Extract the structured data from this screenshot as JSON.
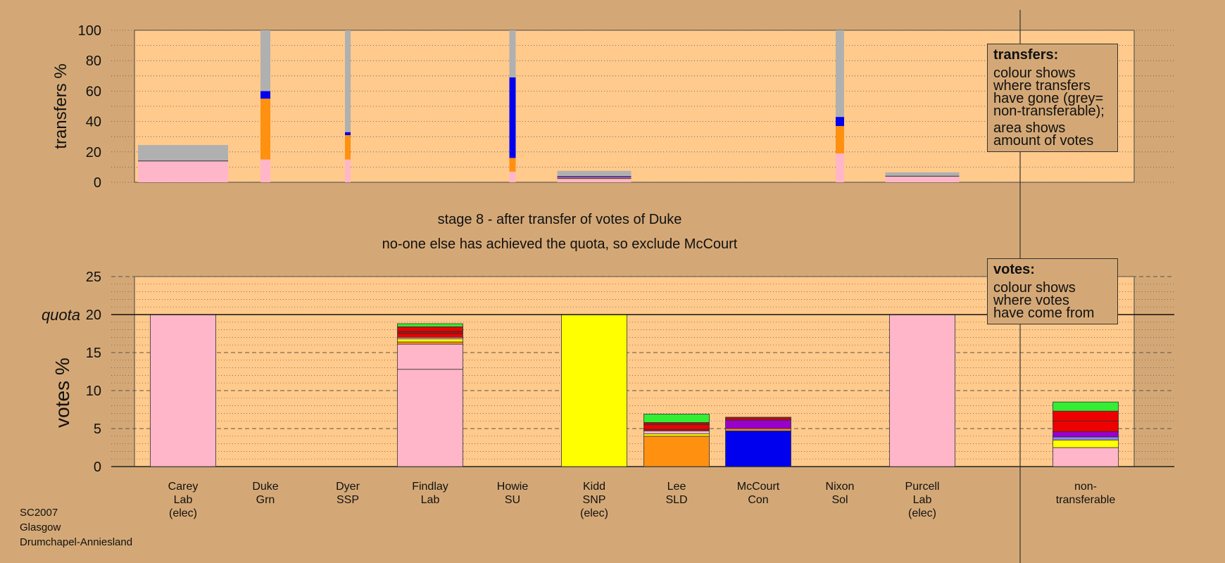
{
  "chart_data": [
    {
      "type": "bar",
      "stacked": true,
      "ylabel": "transfers %",
      "ylim": [
        0,
        100
      ],
      "yticks": [
        0,
        20,
        40,
        60,
        80,
        100
      ],
      "grid": true,
      "note": "bar width shows amount of votes transferred",
      "candidates": [
        "Carey",
        "Duke",
        "Dyer",
        "Findlay",
        "Howie",
        "Kidd",
        "Lee",
        "McCourt",
        "Nixon",
        "Purcell"
      ],
      "bars": [
        {
          "candidate": "Carey",
          "width_votes_pct": 12.8,
          "segments": [
            {
              "color": "#ffb6c8",
              "value": 14
            },
            {
              "color": "#b0b0b0",
              "value": 10.5
            }
          ]
        },
        {
          "candidate": "Duke",
          "width_votes_pct": 1.4,
          "segments": [
            {
              "color": "#ffb6c8",
              "value": 15
            },
            {
              "color": "#ff9010",
              "value": 40
            },
            {
              "color": "#0000ee",
              "value": 5
            },
            {
              "color": "#b0b0b0",
              "value": 40
            }
          ]
        },
        {
          "candidate": "Dyer",
          "width_votes_pct": 0.8,
          "segments": [
            {
              "color": "#ffb6c8",
              "value": 15
            },
            {
              "color": "#ff9010",
              "value": 16
            },
            {
              "color": "#0000ee",
              "value": 2
            },
            {
              "color": "#b0b0b0",
              "value": 67
            }
          ]
        },
        {
          "candidate": "Howie",
          "width_votes_pct": 0.9,
          "segments": [
            {
              "color": "#ffb6c8",
              "value": 7
            },
            {
              "color": "#ff9010",
              "value": 9
            },
            {
              "color": "#0000ee",
              "value": 53
            },
            {
              "color": "#b0b0b0",
              "value": 31
            }
          ]
        },
        {
          "candidate": "Kidd",
          "width_votes_pct": 10.5,
          "segments": [
            {
              "color": "#ffb6c8",
              "value": 2.5
            },
            {
              "color": "#ff9010",
              "value": 0.8
            },
            {
              "color": "#0000ee",
              "value": 0.7
            },
            {
              "color": "#b0b0b0",
              "value": 3.5
            }
          ]
        },
        {
          "candidate": "Nixon",
          "width_votes_pct": 1.2,
          "segments": [
            {
              "color": "#ffb6c8",
              "value": 19
            },
            {
              "color": "#ff9010",
              "value": 18
            },
            {
              "color": "#0000ee",
              "value": 6
            },
            {
              "color": "#b0b0b0",
              "value": 57
            }
          ]
        },
        {
          "candidate": "Purcell",
          "width_votes_pct": 10.5,
          "segments": [
            {
              "color": "#ffb6c8",
              "value": 4
            },
            {
              "color": "#b0b0b0",
              "value": 2.5
            }
          ]
        }
      ]
    },
    {
      "type": "bar",
      "stacked": true,
      "ylabel": "votes %",
      "ylim": [
        0,
        25
      ],
      "yticks": [
        0,
        5,
        10,
        15,
        20,
        25
      ],
      "quota": 20,
      "quota_label": "quota",
      "grid": true,
      "categories": [
        {
          "name": "Carey",
          "party": "Lab",
          "status": "(elec)"
        },
        {
          "name": "Duke",
          "party": "Grn",
          "status": ""
        },
        {
          "name": "Dyer",
          "party": "SSP",
          "status": ""
        },
        {
          "name": "Findlay",
          "party": "Lab",
          "status": ""
        },
        {
          "name": "Howie",
          "party": "SU",
          "status": ""
        },
        {
          "name": "Kidd",
          "party": "SNP",
          "status": "(elec)"
        },
        {
          "name": "Lee",
          "party": "SLD",
          "status": ""
        },
        {
          "name": "McCourt",
          "party": "Con",
          "status": ""
        },
        {
          "name": "Nixon",
          "party": "Sol",
          "status": ""
        },
        {
          "name": "Purcell",
          "party": "Lab",
          "status": "(elec)"
        },
        {
          "name": "non-",
          "party": "transferable",
          "status": ""
        }
      ],
      "stacks": [
        [
          {
            "color": "#ffb6c8",
            "value": 20
          }
        ],
        [],
        [],
        [
          {
            "color": "#ffb6c8",
            "value": 12.8
          },
          {
            "color": "#ffb6c8",
            "value": 3.3
          },
          {
            "color": "#ff9010",
            "value": 0.3
          },
          {
            "color": "#ffff00",
            "value": 0.4
          },
          {
            "color": "#ffb6c8",
            "value": 0.2
          },
          {
            "color": "#ee0000",
            "value": 0.5
          },
          {
            "color": "#aa1111",
            "value": 0.3
          },
          {
            "color": "#ee0000",
            "value": 0.6
          },
          {
            "color": "#33ee33",
            "value": 0.4
          }
        ],
        [],
        [
          {
            "color": "#ffff00",
            "value": 20
          }
        ],
        [
          {
            "color": "#ff9010",
            "value": 4.0
          },
          {
            "color": "#ffff00",
            "value": 0.3
          },
          {
            "color": "#ffb6c8",
            "value": 0.4
          },
          {
            "color": "#aa1111",
            "value": 0.2
          },
          {
            "color": "#ee0000",
            "value": 0.6
          },
          {
            "color": "#aa1111",
            "value": 0.3
          },
          {
            "color": "#33ee33",
            "value": 1.1
          }
        ],
        [
          {
            "color": "#0000ee",
            "value": 4.7
          },
          {
            "color": "#ff9010",
            "value": 0.3
          },
          {
            "color": "#9900cc",
            "value": 1.1
          },
          {
            "color": "#aa1111",
            "value": 0.4
          }
        ],
        [],
        [
          {
            "color": "#ffb6c8",
            "value": 20
          }
        ],
        [
          {
            "color": "#ffb6c8",
            "value": 2.5
          },
          {
            "color": "#ffff00",
            "value": 1.0
          },
          {
            "color": "#8888ff",
            "value": 0.4
          },
          {
            "color": "#9900cc",
            "value": 0.7
          },
          {
            "color": "#ee0000",
            "value": 1.4
          },
          {
            "color": "#ee0000",
            "value": 1.3
          },
          {
            "color": "#33ee33",
            "value": 1.2
          }
        ]
      ]
    }
  ],
  "captions": {
    "stage": "stage 8 - after transfer of votes of Duke",
    "action": "no-one else has achieved the quota, so exclude McCourt"
  },
  "transfers_box": {
    "heading": "transfers:",
    "lines": [
      "colour shows",
      "where transfers",
      "have gone (grey=",
      "non-transferable);"
    ],
    "lines2": [
      "area shows",
      "amount of votes"
    ]
  },
  "votes_box": {
    "heading": "votes:",
    "lines": [
      "colour shows",
      "where votes",
      "have come from"
    ]
  },
  "footer": {
    "election": "SC2007",
    "council": "Glasgow",
    "ward": "Drumchapel-Anniesland"
  },
  "colors": {
    "background": "#d4a876",
    "plot_background": "#ffca8c",
    "pink": "#ffb6c8",
    "grey": "#b0b0b0"
  }
}
